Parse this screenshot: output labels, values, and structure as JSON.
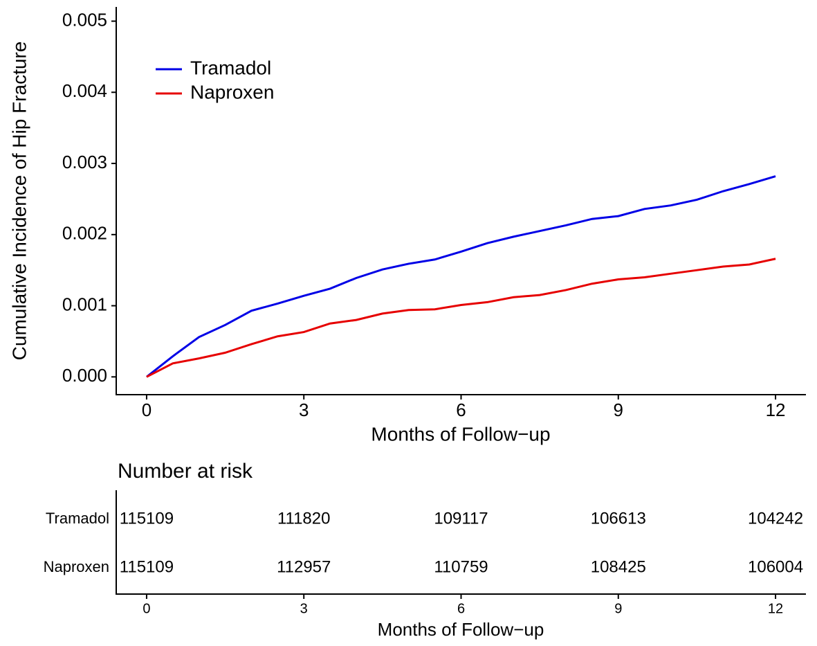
{
  "chart_data": [
    {
      "type": "line",
      "y_label": "Cumulative Incidence of Hip Fracture",
      "x_label": "Months of Follow−up",
      "x": [
        0,
        0.5,
        1,
        1.5,
        2,
        2.5,
        3,
        3.5,
        4,
        4.5,
        5,
        5.5,
        6,
        6.5,
        7,
        7.5,
        8,
        8.5,
        9,
        9.5,
        10,
        10.5,
        11,
        11.5,
        12
      ],
      "series": [
        {
          "name": "Tramadol",
          "color": "#0000e6",
          "values": [
            0,
            0.00029,
            0.00056,
            0.00073,
            0.00093,
            0.00103,
            0.00114,
            0.00124,
            0.00139,
            0.00151,
            0.00159,
            0.00165,
            0.00176,
            0.00188,
            0.00197,
            0.00205,
            0.00213,
            0.00222,
            0.00226,
            0.00236,
            0.00241,
            0.00249,
            0.00261,
            0.00271,
            0.00282
          ]
        },
        {
          "name": "Naproxen",
          "color": "#e60000",
          "values": [
            0,
            0.00019,
            0.00026,
            0.00034,
            0.00046,
            0.00057,
            0.00063,
            0.00075,
            0.0008,
            0.00089,
            0.00094,
            0.00095,
            0.00101,
            0.00105,
            0.00112,
            0.00115,
            0.00122,
            0.00131,
            0.00137,
            0.0014,
            0.00145,
            0.0015,
            0.00155,
            0.00158,
            0.00166
          ]
        }
      ],
      "xlim": [
        -0.58,
        12.58
      ],
      "xticks": [
        0,
        3,
        6,
        9,
        12
      ],
      "ylim": [
        -0.00025,
        0.0052
      ],
      "yticks": [
        {
          "value": 0,
          "label": "0.000"
        },
        {
          "value": 0.001,
          "label": "0.001"
        },
        {
          "value": 0.002,
          "label": "0.002"
        },
        {
          "value": 0.003,
          "label": "0.003"
        },
        {
          "value": 0.004,
          "label": "0.004"
        },
        {
          "value": 0.005,
          "label": "0.005"
        }
      ],
      "legend": "top-left",
      "grid": false
    },
    {
      "type": "table",
      "title": "Number at risk",
      "x_label": "Months of Follow−up",
      "row_labels": [
        "Tramadol",
        "Naproxen"
      ],
      "x": [
        0,
        3,
        6,
        9,
        12
      ],
      "rows": [
        [
          115109,
          111820,
          109117,
          106613,
          104242
        ],
        [
          115109,
          112957,
          110759,
          108425,
          106004
        ]
      ],
      "xlim": [
        -0.58,
        12.58
      ],
      "xticks": [
        0,
        3,
        6,
        9,
        12
      ]
    }
  ]
}
